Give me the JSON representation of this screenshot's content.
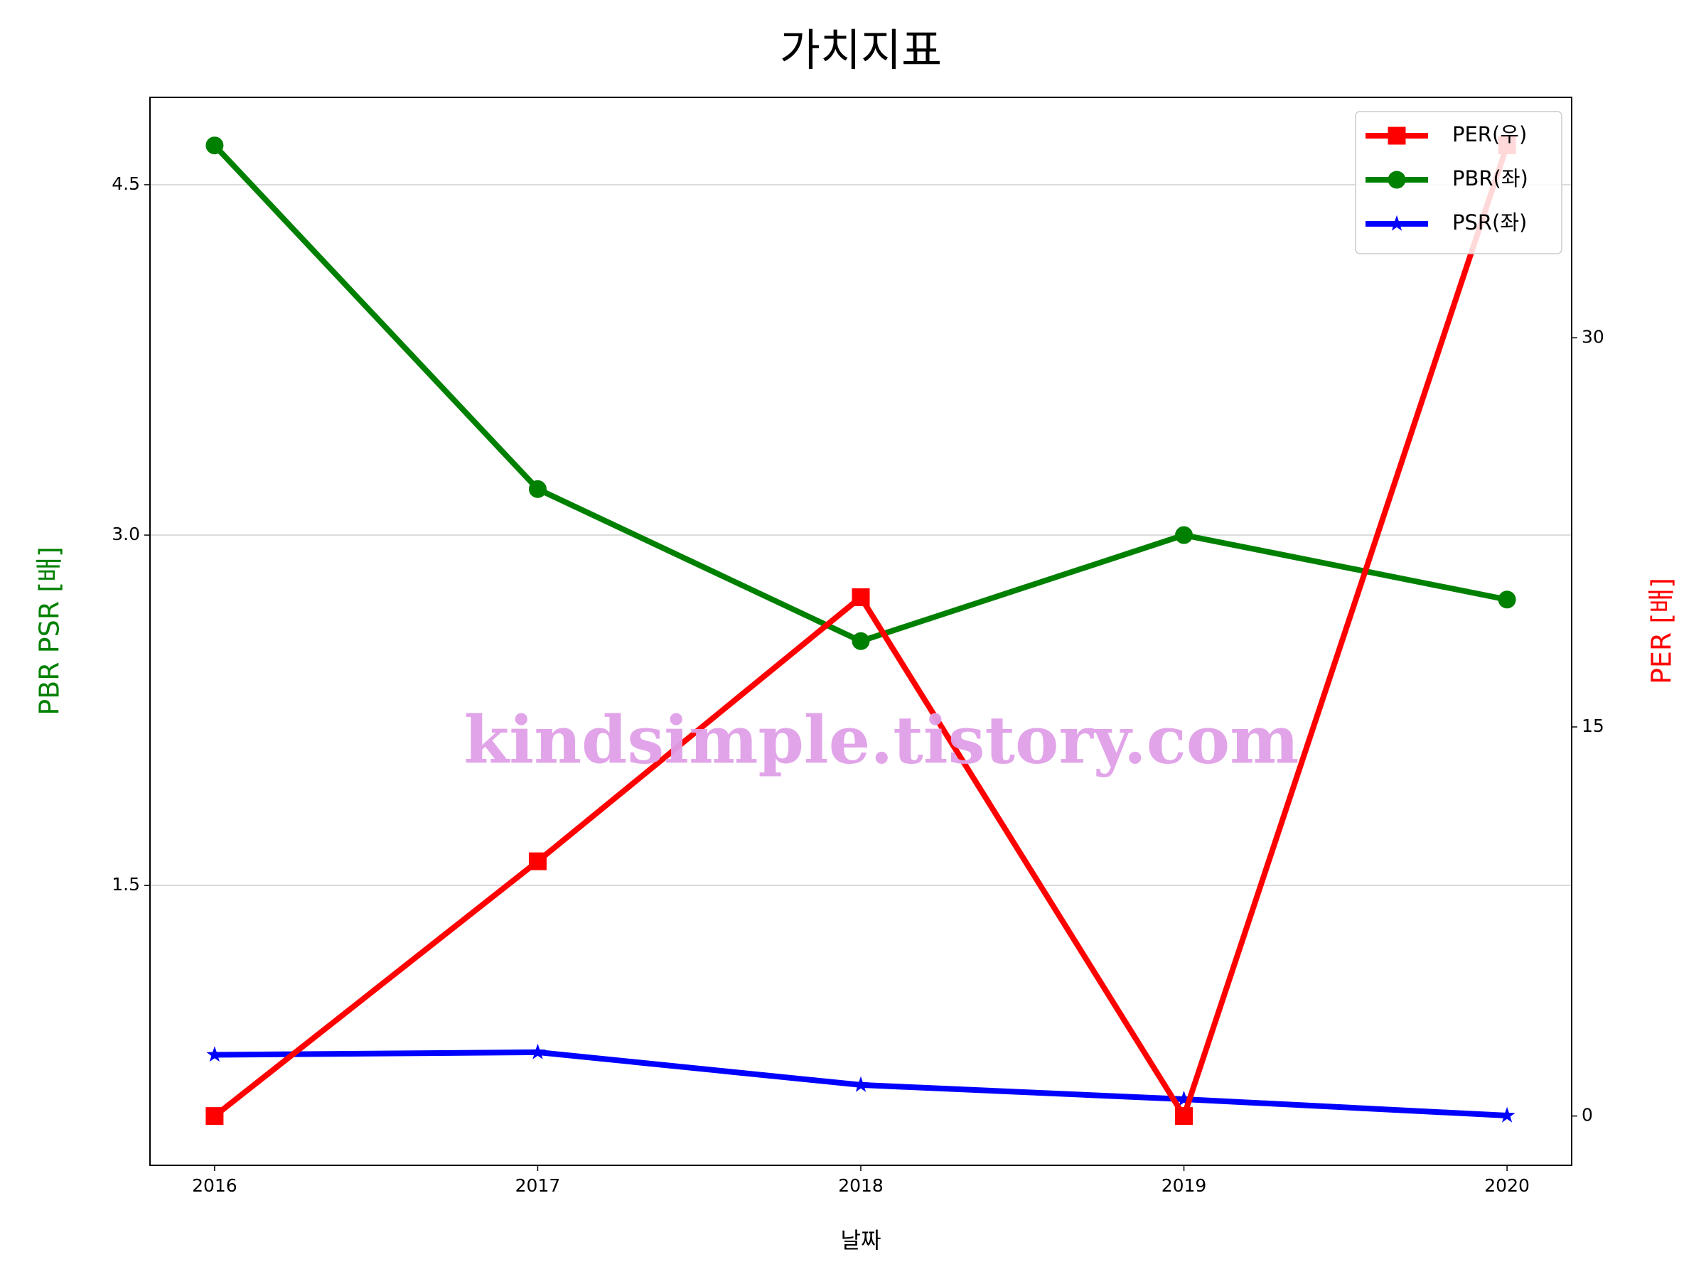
{
  "chart_data": {
    "type": "line",
    "title": "가치지표",
    "x_label": "날짜",
    "y_label": "PBR PSR [배]",
    "y2_label": "PER [배]",
    "y_label_color": "#008000",
    "y2_label_color": "#ff0000",
    "x": [
      2016,
      2017,
      2018,
      2019,
      2020
    ],
    "xlim": [
      2015.8,
      2020.2
    ],
    "xticks": [
      2016,
      2017,
      2018,
      2019,
      2020
    ],
    "ylim": [
      0.302,
      4.874
    ],
    "yticks": [
      {
        "value": 1.5,
        "label": "1.5"
      },
      {
        "value": 3.0,
        "label": "3.0"
      },
      {
        "value": 4.5,
        "label": "4.5"
      }
    ],
    "y2lim": [
      -1.9,
      39.27
    ],
    "y2ticks": [
      0,
      15,
      30
    ],
    "grid": true,
    "legend": "upper right",
    "watermark": "kindsimple.tistory.com",
    "series": [
      {
        "name": "PER(우)",
        "color": "#ff0000",
        "marker": "square",
        "axis": "y2",
        "values": [
          0,
          9.82,
          20.0,
          0,
          37.42
        ]
      },
      {
        "name": "PBR(좌)",
        "color": "#008000",
        "marker": "circle",
        "values": [
          4.668,
          3.197,
          2.546,
          3.0,
          2.724
        ]
      },
      {
        "name": "PSR(좌)",
        "color": "#0000ff",
        "marker": "star",
        "values": [
          0.775,
          0.786,
          0.646,
          0.585,
          0.515
        ]
      }
    ]
  }
}
